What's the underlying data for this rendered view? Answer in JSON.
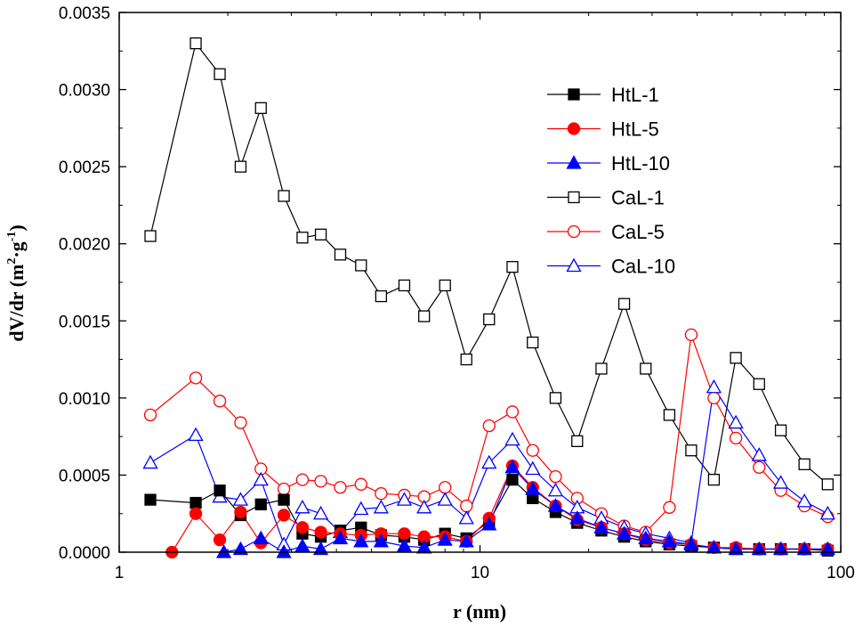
{
  "chart_data": {
    "type": "line",
    "xlabel": "r (nm)",
    "ylabel_main": "dV/dr (m",
    "ylabel_sup1": "2",
    "ylabel_dot": "·g",
    "ylabel_sup2": "-1",
    "ylabel_close": ")",
    "x_scale": "log",
    "xlim": [
      1,
      100
    ],
    "ylim": [
      0,
      0.0035
    ],
    "x_ticks": [
      1,
      10,
      100
    ],
    "x_tick_labels": [
      "1",
      "10",
      "100"
    ],
    "y_ticks": [
      0,
      0.0005,
      0.001,
      0.0015,
      0.002,
      0.0025,
      0.003,
      0.0035
    ],
    "y_tick_labels": [
      "0.0000",
      "0.0005",
      "0.0010",
      "0.0015",
      "0.0020",
      "0.0025",
      "0.0030",
      "0.0035"
    ],
    "grid": false,
    "legend_position": "top-right",
    "series": [
      {
        "name": "HtL-1",
        "color": "#000000",
        "marker": "square",
        "filled": true,
        "points": [
          [
            1.22,
            0.00034
          ],
          [
            1.63,
            0.00032
          ],
          [
            1.9,
            0.0004
          ],
          [
            2.17,
            0.00024
          ],
          [
            2.47,
            0.00031
          ],
          [
            2.86,
            0.00034
          ],
          [
            3.22,
            0.00012
          ],
          [
            3.62,
            0.0001
          ],
          [
            4.1,
            0.00014
          ],
          [
            4.68,
            0.00016
          ],
          [
            5.32,
            0.00011
          ],
          [
            6.17,
            0.0001
          ],
          [
            7.0,
            8e-05
          ],
          [
            8.0,
            0.00012
          ],
          [
            9.17,
            9e-05
          ],
          [
            10.6,
            0.0002
          ],
          [
            12.3,
            0.00047
          ],
          [
            14.0,
            0.00035
          ],
          [
            16.2,
            0.00026
          ],
          [
            18.6,
            0.00019
          ],
          [
            21.7,
            0.00014
          ],
          [
            25.1,
            0.0001
          ],
          [
            28.8,
            7e-05
          ],
          [
            33.5,
            5e-05
          ],
          [
            38.5,
            4e-05
          ],
          [
            44.5,
            3e-05
          ],
          [
            51.2,
            2e-05
          ],
          [
            59.4,
            2e-05
          ],
          [
            68.2,
            2e-05
          ],
          [
            79.3,
            2e-05
          ],
          [
            92.0,
            1e-05
          ]
        ]
      },
      {
        "name": "HtL-5",
        "color": "#ff0000",
        "marker": "circle",
        "filled": true,
        "points": [
          [
            1.4,
            0.0
          ],
          [
            1.63,
            0.00025
          ],
          [
            1.9,
            8e-05
          ],
          [
            2.17,
            0.00026
          ],
          [
            2.47,
            6e-05
          ],
          [
            2.86,
            0.00024
          ],
          [
            3.22,
            0.00016
          ],
          [
            3.62,
            0.00013
          ],
          [
            4.1,
            0.00012
          ],
          [
            4.68,
            0.00011
          ],
          [
            5.32,
            0.00012
          ],
          [
            6.17,
            0.00012
          ],
          [
            7.0,
            0.0001
          ],
          [
            8.0,
            0.0001
          ],
          [
            9.17,
            7e-05
          ],
          [
            10.6,
            0.00022
          ],
          [
            12.3,
            0.00056
          ],
          [
            14.0,
            0.00042
          ],
          [
            16.2,
            0.0003
          ],
          [
            18.6,
            0.00021
          ],
          [
            21.7,
            0.00016
          ],
          [
            25.1,
            0.00012
          ],
          [
            28.8,
            8e-05
          ],
          [
            33.5,
            6e-05
          ],
          [
            38.5,
            5e-05
          ],
          [
            44.5,
            3e-05
          ],
          [
            51.2,
            3e-05
          ],
          [
            59.4,
            2e-05
          ],
          [
            68.2,
            2e-05
          ],
          [
            79.3,
            2e-05
          ],
          [
            92.0,
            2e-05
          ]
        ]
      },
      {
        "name": "HtL-10",
        "color": "#0000ff",
        "marker": "triangle",
        "filled": true,
        "points": [
          [
            1.95,
            0.0
          ],
          [
            2.17,
            2e-05
          ],
          [
            2.47,
            9e-05
          ],
          [
            2.86,
            0.0
          ],
          [
            3.22,
            4e-05
          ],
          [
            3.62,
            2e-05
          ],
          [
            4.1,
            9e-05
          ],
          [
            4.68,
            7e-05
          ],
          [
            5.32,
            7e-05
          ],
          [
            6.17,
            4e-05
          ],
          [
            7.0,
            3e-05
          ],
          [
            8.0,
            8e-05
          ],
          [
            9.17,
            7e-05
          ],
          [
            10.6,
            0.00018
          ],
          [
            12.3,
            0.00055
          ],
          [
            14.0,
            0.00041
          ],
          [
            16.2,
            0.0003
          ],
          [
            18.6,
            0.00022
          ],
          [
            21.7,
            0.00016
          ],
          [
            25.1,
            0.00012
          ],
          [
            28.8,
            9e-05
          ],
          [
            33.5,
            7e-05
          ],
          [
            38.5,
            5e-05
          ],
          [
            44.5,
            3e-05
          ],
          [
            51.2,
            2e-05
          ],
          [
            59.4,
            2e-05
          ],
          [
            68.2,
            2e-05
          ],
          [
            79.3,
            2e-05
          ],
          [
            92.0,
            2e-05
          ]
        ]
      },
      {
        "name": "CaL-1",
        "color": "#000000",
        "marker": "square",
        "filled": false,
        "points": [
          [
            1.22,
            0.00205
          ],
          [
            1.63,
            0.0033
          ],
          [
            1.9,
            0.0031
          ],
          [
            2.17,
            0.0025
          ],
          [
            2.47,
            0.00288
          ],
          [
            2.86,
            0.00231
          ],
          [
            3.22,
            0.00204
          ],
          [
            3.62,
            0.00206
          ],
          [
            4.1,
            0.00193
          ],
          [
            4.68,
            0.00186
          ],
          [
            5.32,
            0.00166
          ],
          [
            6.17,
            0.00173
          ],
          [
            7.0,
            0.00153
          ],
          [
            8.0,
            0.00173
          ],
          [
            9.17,
            0.00125
          ],
          [
            10.6,
            0.00151
          ],
          [
            12.3,
            0.00185
          ],
          [
            14.0,
            0.00136
          ],
          [
            16.2,
            0.001
          ],
          [
            18.6,
            0.00072
          ],
          [
            21.7,
            0.00119
          ],
          [
            25.1,
            0.00161
          ],
          [
            28.8,
            0.00119
          ],
          [
            33.5,
            0.00089
          ],
          [
            38.5,
            0.00066
          ],
          [
            44.5,
            0.00047
          ],
          [
            51.2,
            0.00126
          ],
          [
            59.4,
            0.00109
          ],
          [
            68.2,
            0.00079
          ],
          [
            79.3,
            0.00057
          ],
          [
            92.0,
            0.00044
          ]
        ]
      },
      {
        "name": "CaL-5",
        "color": "#ff0000",
        "marker": "circle",
        "filled": false,
        "points": [
          [
            1.22,
            0.00089
          ],
          [
            1.63,
            0.00113
          ],
          [
            1.9,
            0.00098
          ],
          [
            2.17,
            0.00084
          ],
          [
            2.47,
            0.00054
          ],
          [
            2.86,
            0.00041
          ],
          [
            3.22,
            0.00047
          ],
          [
            3.62,
            0.00046
          ],
          [
            4.1,
            0.00042
          ],
          [
            4.68,
            0.00044
          ],
          [
            5.32,
            0.00038
          ],
          [
            6.17,
            0.00037
          ],
          [
            7.0,
            0.00036
          ],
          [
            8.0,
            0.00042
          ],
          [
            9.17,
            0.0003
          ],
          [
            10.6,
            0.00082
          ],
          [
            12.3,
            0.00091
          ],
          [
            14.0,
            0.00066
          ],
          [
            16.2,
            0.00049
          ],
          [
            18.6,
            0.00035
          ],
          [
            21.7,
            0.00025
          ],
          [
            25.1,
            0.00017
          ],
          [
            28.8,
            0.00013
          ],
          [
            33.5,
            0.00029
          ],
          [
            38.5,
            0.00141
          ],
          [
            44.5,
            0.001
          ],
          [
            51.2,
            0.00074
          ],
          [
            59.4,
            0.00055
          ],
          [
            68.2,
            0.0004
          ],
          [
            79.3,
            0.0003
          ],
          [
            92.0,
            0.00023
          ]
        ]
      },
      {
        "name": "CaL-10",
        "color": "#0000ff",
        "marker": "triangle",
        "filled": false,
        "points": [
          [
            1.22,
            0.00058
          ],
          [
            1.63,
            0.00076
          ],
          [
            1.9,
            0.00036
          ],
          [
            2.17,
            0.00034
          ],
          [
            2.47,
            0.00047
          ],
          [
            2.86,
            5e-05
          ],
          [
            3.22,
            0.00029
          ],
          [
            3.62,
            0.00025
          ],
          [
            4.1,
            0.00013
          ],
          [
            4.68,
            0.00028
          ],
          [
            5.32,
            0.00029
          ],
          [
            6.17,
            0.00034
          ],
          [
            7.0,
            0.00029
          ],
          [
            8.0,
            0.00034
          ],
          [
            9.17,
            0.00022
          ],
          [
            10.6,
            0.00058
          ],
          [
            12.3,
            0.00073
          ],
          [
            14.0,
            0.00054
          ],
          [
            16.2,
            0.0004
          ],
          [
            18.6,
            0.00029
          ],
          [
            21.7,
            0.00022
          ],
          [
            25.1,
            0.00016
          ],
          [
            28.8,
            0.00012
          ],
          [
            33.5,
            9e-05
          ],
          [
            38.5,
            6e-05
          ],
          [
            44.5,
            0.00107
          ],
          [
            51.2,
            0.00084
          ],
          [
            59.4,
            0.00063
          ],
          [
            68.2,
            0.00045
          ],
          [
            79.3,
            0.00033
          ],
          [
            92.0,
            0.00025
          ]
        ]
      }
    ]
  }
}
